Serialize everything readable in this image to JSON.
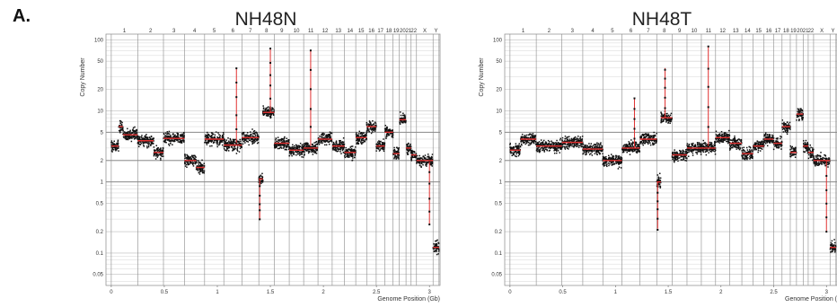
{
  "panel_label": "A.",
  "colors": {
    "points": "#111111",
    "segments": "#e03030",
    "grid_major": "#777777",
    "grid_minor": "#d6d6d6",
    "chrom_line": "#8a8a8a"
  },
  "chart_data": [
    {
      "type": "scatter",
      "title": "NH48N",
      "xlabel": "Genome Position (Gb)",
      "ylabel": "Copy Number",
      "yscale": "log",
      "xlim": [
        -0.05,
        3.1
      ],
      "ylim": [
        0.035,
        120
      ],
      "x_ticks": [
        "0",
        "0.5",
        "1",
        "1.5",
        "2",
        "2.5",
        "3"
      ],
      "y_ticks": [
        "100",
        "50",
        "20",
        "10",
        "5",
        "2",
        "1",
        "0.5",
        "0.2",
        "0.1",
        "0.05"
      ],
      "chromosomes": [
        "1",
        "2",
        "3",
        "4",
        "5",
        "6",
        "7",
        "8",
        "9",
        "10",
        "11",
        "12",
        "13",
        "14",
        "15",
        "16",
        "17",
        "18",
        "19",
        "20",
        "21",
        "22",
        "X",
        "Y"
      ],
      "chrom_bounds": [
        0,
        0.249,
        0.492,
        0.69,
        0.88,
        1.061,
        1.232,
        1.391,
        1.537,
        1.678,
        1.814,
        1.949,
        2.083,
        2.198,
        2.305,
        2.408,
        2.498,
        2.579,
        2.657,
        2.716,
        2.779,
        2.827,
        2.878,
        3.034,
        3.09
      ],
      "segments": [
        {
          "x": [
            0.0,
            0.07
          ],
          "cn": 3.2
        },
        {
          "x": [
            0.07,
            0.11
          ],
          "cn": 6.0
        },
        {
          "x": [
            0.11,
            0.249
          ],
          "cn": 4.6
        },
        {
          "x": [
            0.249,
            0.4
          ],
          "cn": 3.8
        },
        {
          "x": [
            0.4,
            0.492
          ],
          "cn": 2.6
        },
        {
          "x": [
            0.492,
            0.69
          ],
          "cn": 4.1
        },
        {
          "x": [
            0.69,
            0.8
          ],
          "cn": 2.0
        },
        {
          "x": [
            0.8,
            0.88
          ],
          "cn": 1.6
        },
        {
          "x": [
            0.88,
            1.061
          ],
          "cn": 4.0
        },
        {
          "x": [
            1.061,
            1.232
          ],
          "cn": 3.3
        },
        {
          "x": [
            1.232,
            1.391
          ],
          "cn": 4.2
        },
        {
          "x": [
            1.391,
            1.43
          ],
          "cn": 1.1
        },
        {
          "x": [
            1.43,
            1.537
          ],
          "cn": 9.5
        },
        {
          "x": [
            1.537,
            1.678
          ],
          "cn": 3.5
        },
        {
          "x": [
            1.678,
            1.814
          ],
          "cn": 2.8
        },
        {
          "x": [
            1.814,
            1.949
          ],
          "cn": 3.0
        },
        {
          "x": [
            1.949,
            2.083
          ],
          "cn": 4.0
        },
        {
          "x": [
            2.083,
            2.198
          ],
          "cn": 3.2
        },
        {
          "x": [
            2.198,
            2.305
          ],
          "cn": 2.6
        },
        {
          "x": [
            2.305,
            2.408
          ],
          "cn": 4.2
        },
        {
          "x": [
            2.408,
            2.498
          ],
          "cn": 6.0
        },
        {
          "x": [
            2.498,
            2.579
          ],
          "cn": 3.2
        },
        {
          "x": [
            2.579,
            2.657
          ],
          "cn": 5.0
        },
        {
          "x": [
            2.657,
            2.716
          ],
          "cn": 2.5
        },
        {
          "x": [
            2.716,
            2.779
          ],
          "cn": 7.5
        },
        {
          "x": [
            2.779,
            2.827
          ],
          "cn": 3.0
        },
        {
          "x": [
            2.827,
            2.878
          ],
          "cn": 2.4
        },
        {
          "x": [
            2.878,
            3.034
          ],
          "cn": 2.0
        },
        {
          "x": [
            3.034,
            3.09
          ],
          "cn": 0.12
        }
      ],
      "spikes": [
        {
          "x": 1.18,
          "cn": 40
        },
        {
          "x": 1.5,
          "cn": 75
        },
        {
          "x": 1.88,
          "cn": 70
        },
        {
          "x": 1.4,
          "cn": 0.3
        },
        {
          "x": 3.0,
          "cn": 0.25
        }
      ]
    },
    {
      "type": "scatter",
      "title": "NH48T",
      "xlabel": "Genome Position (",
      "ylabel": "Copy Number",
      "yscale": "log",
      "xlim": [
        -0.05,
        3.1
      ],
      "ylim": [
        0.035,
        120
      ],
      "x_ticks": [
        "0",
        "0.5",
        "1",
        "1.5",
        "2",
        "2.5",
        "3"
      ],
      "y_ticks": [
        "100",
        "50",
        "20",
        "10",
        "5",
        "2",
        "1",
        "0.5",
        "0.2",
        "0.1",
        "0.05"
      ],
      "chromosomes": [
        "1",
        "2",
        "3",
        "4",
        "5",
        "6",
        "7",
        "8",
        "9",
        "10",
        "11",
        "12",
        "13",
        "14",
        "15",
        "16",
        "17",
        "18",
        "19",
        "20",
        "21",
        "22",
        "X",
        "Y"
      ],
      "chrom_bounds": [
        0,
        0.249,
        0.492,
        0.69,
        0.88,
        1.061,
        1.232,
        1.391,
        1.537,
        1.678,
        1.814,
        1.949,
        2.083,
        2.198,
        2.305,
        2.408,
        2.498,
        2.579,
        2.657,
        2.716,
        2.779,
        2.827,
        2.878,
        3.034,
        3.09
      ],
      "segments": [
        {
          "x": [
            0.0,
            0.1
          ],
          "cn": 2.8
        },
        {
          "x": [
            0.1,
            0.249
          ],
          "cn": 4.0
        },
        {
          "x": [
            0.249,
            0.492
          ],
          "cn": 3.2
        },
        {
          "x": [
            0.492,
            0.69
          ],
          "cn": 3.6
        },
        {
          "x": [
            0.69,
            0.88
          ],
          "cn": 2.9
        },
        {
          "x": [
            0.88,
            1.061
          ],
          "cn": 2.0
        },
        {
          "x": [
            1.061,
            1.232
          ],
          "cn": 3.0
        },
        {
          "x": [
            1.232,
            1.391
          ],
          "cn": 4.0
        },
        {
          "x": [
            1.391,
            1.43
          ],
          "cn": 1.0
        },
        {
          "x": [
            1.43,
            1.537
          ],
          "cn": 8.0
        },
        {
          "x": [
            1.537,
            1.678
          ],
          "cn": 2.4
        },
        {
          "x": [
            1.678,
            1.814
          ],
          "cn": 3.0
        },
        {
          "x": [
            1.814,
            1.949
          ],
          "cn": 3.0
        },
        {
          "x": [
            1.949,
            2.083
          ],
          "cn": 4.2
        },
        {
          "x": [
            2.083,
            2.198
          ],
          "cn": 3.5
        },
        {
          "x": [
            2.198,
            2.305
          ],
          "cn": 2.5
        },
        {
          "x": [
            2.305,
            2.408
          ],
          "cn": 3.2
        },
        {
          "x": [
            2.408,
            2.498
          ],
          "cn": 4.0
        },
        {
          "x": [
            2.498,
            2.579
          ],
          "cn": 3.5
        },
        {
          "x": [
            2.579,
            2.657
          ],
          "cn": 6.0
        },
        {
          "x": [
            2.657,
            2.716
          ],
          "cn": 2.6
        },
        {
          "x": [
            2.716,
            2.779
          ],
          "cn": 9.0
        },
        {
          "x": [
            2.779,
            2.827
          ],
          "cn": 3.2
        },
        {
          "x": [
            2.827,
            2.878
          ],
          "cn": 2.6
        },
        {
          "x": [
            2.878,
            3.034
          ],
          "cn": 2.0
        },
        {
          "x": [
            3.034,
            3.09
          ],
          "cn": 0.12
        }
      ],
      "spikes": [
        {
          "x": 1.18,
          "cn": 15
        },
        {
          "x": 1.47,
          "cn": 40
        },
        {
          "x": 1.88,
          "cn": 80
        },
        {
          "x": 1.4,
          "cn": 0.22
        },
        {
          "x": 3.0,
          "cn": 0.2
        }
      ]
    }
  ]
}
